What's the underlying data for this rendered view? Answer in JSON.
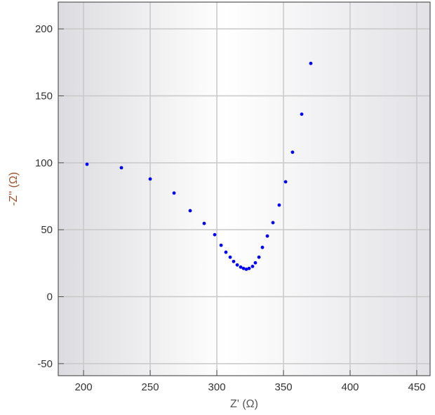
{
  "chart_data": {
    "type": "scatter",
    "x_label": "Z' (Ω)",
    "y_label": "-Z'' (Ω)",
    "series": [
      {
        "color": "#0000ff",
        "x": [
          202.6,
          228.4,
          250,
          267.9,
          280,
          290.5,
          298.4,
          303.2,
          306.8,
          310,
          312.6,
          315.3,
          317.9,
          320,
          322.1,
          324.2,
          326.8,
          328.9,
          331.6,
          334.2,
          337.9,
          342.1,
          346.8,
          351.6,
          356.8,
          363.7,
          370.5
        ],
        "values": [
          98.9,
          96.3,
          87.9,
          77.4,
          64.2,
          54.7,
          46.3,
          38.4,
          33.2,
          29.5,
          26.3,
          23.7,
          22.1,
          21.1,
          20.5,
          21.1,
          22.6,
          25.3,
          29.5,
          36.8,
          45.3,
          55.3,
          68.4,
          85.8,
          107.9,
          136.3,
          174.2
        ]
      }
    ],
    "xlim": [
      181,
      460
    ],
    "ylim": [
      -59,
      220
    ],
    "xticks": [
      200,
      250,
      300,
      350,
      400,
      450
    ],
    "yticks": [
      -50,
      0,
      50,
      100,
      150,
      200
    ],
    "grid": true
  }
}
